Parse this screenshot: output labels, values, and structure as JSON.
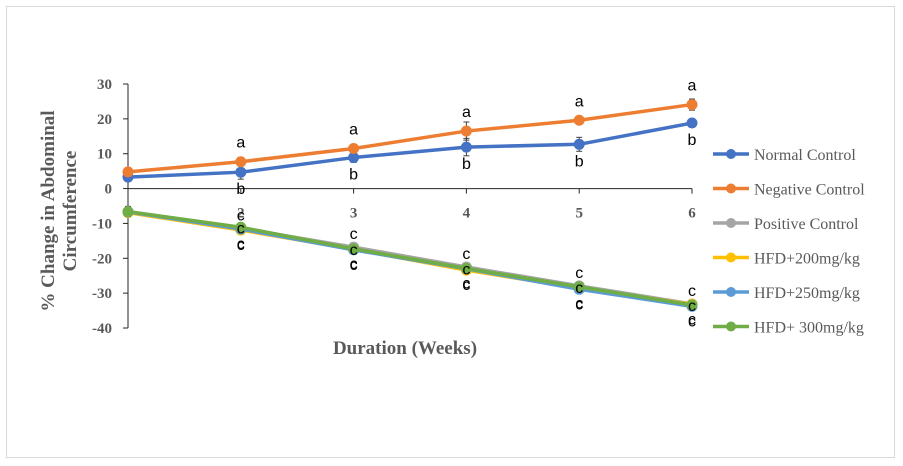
{
  "chart_data": {
    "type": "line",
    "xlabel": "Duration (Weeks)",
    "ylabel_line1": "% Change in Abdominal",
    "ylabel_line2": "Circumference",
    "x": [
      1,
      2,
      3,
      4,
      5,
      6
    ],
    "x_tick_labels": [
      "1",
      "2",
      "3",
      "4",
      "5",
      "6"
    ],
    "ylim": [
      -40,
      30
    ],
    "y_ticks": [
      30,
      20,
      10,
      0,
      -10,
      -20,
      -30,
      -40
    ],
    "grid": false,
    "legend_position": "right",
    "series": [
      {
        "name": "Normal Control",
        "color": "#4472C4",
        "values": [
          3.3,
          4.7,
          8.9,
          11.9,
          12.7,
          18.8
        ],
        "errors": [
          0.8,
          2.0,
          1.4,
          2.5,
          2.0,
          1.0
        ],
        "labels": [
          "",
          "b",
          "b",
          "b",
          "b",
          "b"
        ]
      },
      {
        "name": "Negative Control",
        "color": "#ED7D31",
        "values": [
          4.8,
          7.7,
          11.5,
          16.5,
          19.6,
          24.1
        ],
        "errors": [
          0.8,
          1.0,
          1.0,
          2.6,
          0.8,
          1.6
        ],
        "labels": [
          "",
          "a",
          "a",
          "a",
          "a",
          "a"
        ]
      },
      {
        "name": "Positive Control",
        "color": "#A5A5A5",
        "values": [
          -6.6,
          -11.4,
          -16.8,
          -22.5,
          -27.9,
          -33.1
        ],
        "errors": [
          1.5,
          1.2,
          1.0,
          1.0,
          1.0,
          1.0
        ],
        "labels": [
          "",
          "c",
          "c",
          "c",
          "c",
          "c"
        ]
      },
      {
        "name": "HFD+200mg/kg",
        "color": "#FFC000",
        "values": [
          -6.9,
          -11.9,
          -17.4,
          -23.4,
          -28.6,
          -33.2
        ],
        "errors": [
          1.2,
          1.0,
          1.0,
          1.0,
          1.0,
          1.0
        ],
        "labels": [
          "",
          "c",
          "c",
          "c",
          "c",
          "c"
        ]
      },
      {
        "name": "HFD+250mg/kg",
        "color": "#5B9BD5",
        "values": [
          -6.7,
          -11.6,
          -17.6,
          -23.0,
          -28.9,
          -33.8
        ],
        "errors": [
          1.2,
          1.0,
          1.0,
          1.0,
          1.0,
          1.0
        ],
        "labels": [
          "",
          "c",
          "c",
          "c",
          "c",
          "c"
        ]
      },
      {
        "name": "HFD+ 300mg/kg",
        "color": "#70AD47",
        "values": [
          -6.6,
          -11.1,
          -17.3,
          -22.9,
          -28.2,
          -33.4
        ],
        "errors": [
          1.2,
          1.0,
          1.0,
          1.0,
          1.0,
          1.0
        ],
        "labels": [
          "",
          "c",
          "c",
          "c",
          "c",
          "c"
        ]
      }
    ]
  }
}
